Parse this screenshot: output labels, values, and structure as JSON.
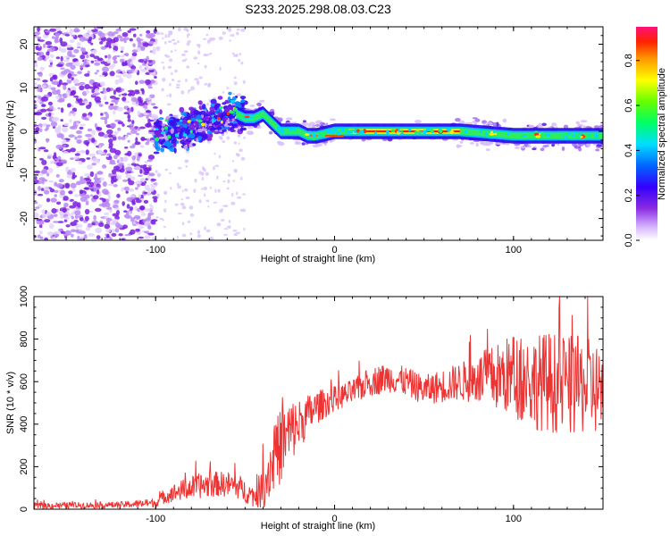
{
  "title": "S233.2025.298.08.03.C23",
  "chart_data": [
    {
      "type": "heatmap",
      "xlabel": "Height of straight line (km)",
      "ylabel": "Frequency (Hz)",
      "xlim": [
        -168,
        150
      ],
      "ylim": [
        -25,
        24
      ],
      "xticks": [
        -100,
        0,
        100
      ],
      "yticks": [
        -20,
        -10,
        0,
        10,
        20
      ],
      "ridge": {
        "x": [
          -100,
          -90,
          -80,
          -70,
          -60,
          -55,
          -50,
          -45,
          -40,
          -35,
          -30,
          -25,
          -20,
          -15,
          -10,
          0,
          20,
          50,
          70,
          100,
          120,
          150
        ],
        "freq": [
          -1,
          0,
          1,
          2.5,
          3.5,
          4,
          3,
          3,
          4,
          2,
          0,
          0,
          0,
          -1,
          -1,
          0,
          0,
          0,
          0,
          -1,
          -1,
          -1
        ]
      },
      "colorbar": {
        "label": "Normalized spectral amplitude",
        "ticks": [
          "0.0",
          "0.2",
          "0.4",
          "0.6",
          "0.8"
        ],
        "range": [
          0,
          0.95
        ]
      }
    },
    {
      "type": "line",
      "xlabel": "Height of straight line (km)",
      "ylabel": "SNR (10 * v/v)",
      "xlim": [
        -168,
        150
      ],
      "ylim": [
        0,
        1000
      ],
      "xticks": [
        -100,
        0,
        100
      ],
      "yticks": [
        0,
        200,
        400,
        600,
        800,
        1000
      ],
      "series": [
        {
          "name": "SNR",
          "color": "#ee3333",
          "x": [
            -168,
            -150,
            -120,
            -100,
            -95,
            -85,
            -75,
            -65,
            -55,
            -45,
            -40,
            -35,
            -30,
            -25,
            -20,
            -15,
            -10,
            0,
            10,
            20,
            30,
            40,
            50,
            60,
            70,
            80,
            90,
            100,
            110,
            120,
            130,
            140,
            150
          ],
          "mean": [
            15,
            18,
            20,
            30,
            60,
            90,
            110,
            120,
            110,
            60,
            100,
            220,
            300,
            360,
            400,
            440,
            480,
            520,
            550,
            600,
            620,
            600,
            560,
            580,
            600,
            610,
            620,
            630,
            600,
            600,
            580,
            580,
            560
          ],
          "amp": [
            15,
            15,
            15,
            20,
            35,
            50,
            60,
            60,
            60,
            50,
            100,
            160,
            180,
            160,
            120,
            100,
            80,
            60,
            60,
            70,
            70,
            70,
            70,
            80,
            90,
            120,
            160,
            200,
            220,
            240,
            240,
            230,
            220
          ]
        }
      ]
    }
  ]
}
